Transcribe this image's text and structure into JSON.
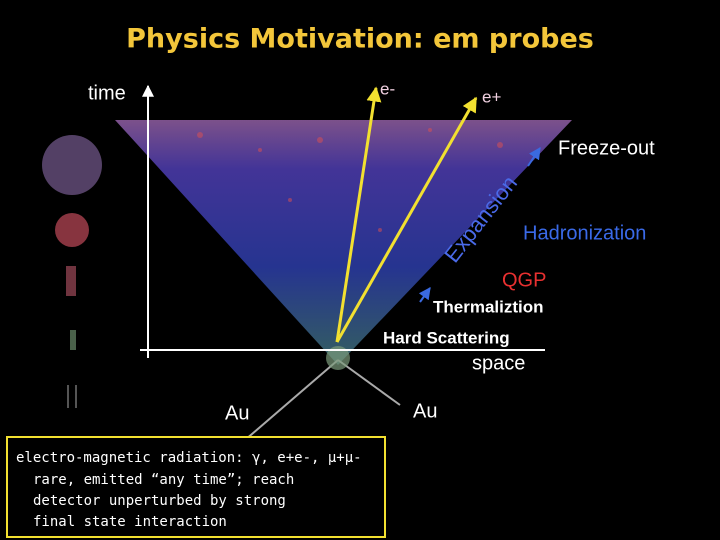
{
  "title": "Physics Motivation: em probes",
  "axes": {
    "time": "time",
    "space": "space"
  },
  "probes": {
    "electron": "e-",
    "positron": "e+"
  },
  "stages": {
    "freeze_out": "Freeze-out",
    "expansion": "Expansion",
    "hadronization": "Hadronization",
    "qgp": "QGP",
    "thermalization": "Thermaliztion",
    "hard_scattering": "Hard Scattering"
  },
  "nuclei": {
    "left": "Au",
    "right": "Au"
  },
  "note": {
    "lines": [
      "electro-magnetic radiation: γ, e+e-, μ+μ-",
      "rare, emitted “any time”; reach",
      "detector unperturbed by strong",
      "final state interaction"
    ]
  }
}
